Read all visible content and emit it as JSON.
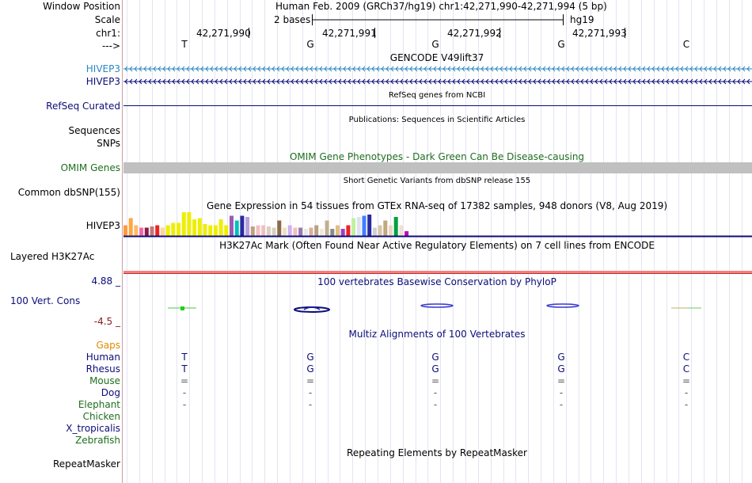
{
  "header": {
    "window_position_label": "Window Position",
    "window_position_value": "Human Feb. 2009 (GRCh37/hg19)   chr1:42,271,990-42,271,994 (5 bp)",
    "scale_label": "Scale",
    "scale_text": "2 bases",
    "assembly": "hg19",
    "chrom_label": "chr1:",
    "strand_label": "--->",
    "positions": [
      "42,271,990",
      "42,271,991",
      "42,271,992",
      "42,271,993"
    ],
    "bases": [
      "T",
      "G",
      "G",
      "G",
      "C"
    ]
  },
  "gencode": {
    "title": "GENCODE V49lift37",
    "tracks": [
      {
        "label": "HIVEP3",
        "color": "#2a87c0"
      },
      {
        "label": "HIVEP3",
        "color": "#0c0c78"
      }
    ]
  },
  "refseq": {
    "title": "RefSeq genes from NCBI",
    "label": "RefSeq Curated",
    "color": "#0c0c78"
  },
  "publications": {
    "title": "Publications: Sequences in Scientific Articles",
    "labels": [
      "Sequences",
      "SNPs"
    ]
  },
  "omim": {
    "title": "OMIM Gene Phenotypes - Dark Green Can Be Disease-causing",
    "label": "OMIM Genes",
    "color": "#1e6e1e",
    "bar_color": "#c0c0c0"
  },
  "dbsnp": {
    "title": "Short Genetic Variants from dbSNP release 155",
    "label": "Common dbSNP(155)"
  },
  "gtex": {
    "title": "Gene Expression in 54 tissues from GTEx RNA-seq of 17382 samples, 948 donors (V8, Aug 2019)",
    "label": "HIVEP3",
    "bars": [
      {
        "v": 0.45,
        "c": "#ff9a3c"
      },
      {
        "v": 0.75,
        "c": "#ffa640"
      },
      {
        "v": 0.45,
        "c": "#ffb86b"
      },
      {
        "v": 0.35,
        "c": "#ee6aa8"
      },
      {
        "v": 0.35,
        "c": "#8b1a4a"
      },
      {
        "v": 0.4,
        "c": "#c27878"
      },
      {
        "v": 0.45,
        "c": "#ee2222"
      },
      {
        "v": 0.35,
        "c": "#ffd59a"
      },
      {
        "v": 0.45,
        "c": "#eeee00"
      },
      {
        "v": 0.55,
        "c": "#eeee00"
      },
      {
        "v": 0.55,
        "c": "#eeee00"
      },
      {
        "v": 1.0,
        "c": "#eeee00"
      },
      {
        "v": 1.0,
        "c": "#eeee00"
      },
      {
        "v": 0.7,
        "c": "#eeee00"
      },
      {
        "v": 0.75,
        "c": "#eeee00"
      },
      {
        "v": 0.5,
        "c": "#eeee00"
      },
      {
        "v": 0.45,
        "c": "#eeee00"
      },
      {
        "v": 0.45,
        "c": "#eeee00"
      },
      {
        "v": 0.7,
        "c": "#eeee00"
      },
      {
        "v": 0.45,
        "c": "#eeee00"
      },
      {
        "v": 0.85,
        "c": "#9b59b6"
      },
      {
        "v": 0.65,
        "c": "#00c0c0"
      },
      {
        "v": 0.85,
        "c": "#2a2aa0"
      },
      {
        "v": 0.8,
        "c": "#b8a0d8"
      },
      {
        "v": 0.4,
        "c": "#c0a080"
      },
      {
        "v": 0.45,
        "c": "#f0c0c0"
      },
      {
        "v": 0.45,
        "c": "#f0c0c0"
      },
      {
        "v": 0.4,
        "c": "#d8d0c0"
      },
      {
        "v": 0.35,
        "c": "#d8d0c0"
      },
      {
        "v": 0.65,
        "c": "#8b6a4a"
      },
      {
        "v": 0.35,
        "c": "#f0e0c0"
      },
      {
        "v": 0.45,
        "c": "#d0b0f0"
      },
      {
        "v": 0.35,
        "c": "#f0c0c0"
      },
      {
        "v": 0.35,
        "c": "#9a7aaa"
      },
      {
        "v": 0.3,
        "c": "#e8e8e8"
      },
      {
        "v": 0.35,
        "c": "#d8b0a0"
      },
      {
        "v": 0.45,
        "c": "#b8a080"
      },
      {
        "v": 0.3,
        "c": "#f0e8d8"
      },
      {
        "v": 0.65,
        "c": "#c0b090"
      },
      {
        "v": 0.3,
        "c": "#8b8b8b"
      },
      {
        "v": 0.45,
        "c": "#e0c080"
      },
      {
        "v": 0.3,
        "c": "#a040c0"
      },
      {
        "v": 0.45,
        "c": "#ee2222"
      },
      {
        "v": 0.75,
        "c": "#c0f0a0"
      },
      {
        "v": 0.8,
        "c": "#e0e0f0"
      },
      {
        "v": 0.85,
        "c": "#4080ff"
      },
      {
        "v": 0.9,
        "c": "#2a2aa0"
      },
      {
        "v": 0.35,
        "c": "#d0d0d0"
      },
      {
        "v": 0.45,
        "c": "#d8c8a8"
      },
      {
        "v": 0.65,
        "c": "#c0a880"
      },
      {
        "v": 0.45,
        "c": "#e8d8c0"
      },
      {
        "v": 0.8,
        "c": "#00a040"
      },
      {
        "v": 0.45,
        "c": "#f0e0d0"
      },
      {
        "v": 0.2,
        "c": "#c000c0"
      }
    ]
  },
  "h3k27ac": {
    "title": "H3K27Ac Mark (Often Found Near Active Regulatory Elements) on 7 cell lines from ENCODE",
    "label": "Layered H3K27Ac"
  },
  "conservation": {
    "title": "100 vertebrates Basewise Conservation by PhyloP",
    "label": "100 Vert. Cons",
    "ymax": "4.88 _",
    "ymin": "-4.5 _",
    "label_color": "#0c0c78",
    "max_color": "#0c0c78",
    "min_color": "#8b1a1a"
  },
  "multiz": {
    "title": "Multiz Alignments of 100 Vertebrates",
    "gaps_label": "Gaps",
    "species": [
      {
        "name": "Human",
        "color": "#0c0c78",
        "bases": [
          "T",
          "G",
          "G",
          "G",
          "C"
        ]
      },
      {
        "name": "Rhesus",
        "color": "#0c0c78",
        "bases": [
          "T",
          "G",
          "G",
          "G",
          "C"
        ]
      },
      {
        "name": "Mouse",
        "color": "#1e6e1e",
        "bases": [
          "=",
          "=",
          "=",
          "=",
          "="
        ]
      },
      {
        "name": "Dog",
        "color": "#0c0c78",
        "bases": [
          "-",
          "-",
          "-",
          "-",
          "-"
        ]
      },
      {
        "name": "Elephant",
        "color": "#1e6e1e",
        "bases": [
          "-",
          "-",
          "-",
          "-",
          "-"
        ]
      },
      {
        "name": "Chicken",
        "color": "#1e6e1e",
        "bases": [
          "",
          "",
          "",
          "",
          ""
        ]
      },
      {
        "name": "X_tropicalis",
        "color": "#0c0c78",
        "bases": [
          "",
          "",
          "",
          "",
          ""
        ]
      },
      {
        "name": "Zebrafish",
        "color": "#1e6e1e",
        "bases": [
          "",
          "",
          "",
          "",
          ""
        ]
      }
    ]
  },
  "repeatmasker": {
    "title": "Repeating Elements by RepeatMasker",
    "label": "RepeatMasker"
  }
}
